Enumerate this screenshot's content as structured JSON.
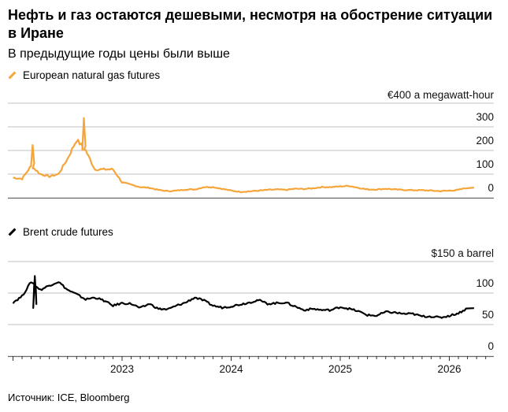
{
  "title": "Нефть и газ остаются дешевыми, несмотря на обострение ситуации в Иране",
  "subtitle": "В предыдущие годы цены были выше",
  "source": "Источник: ICE, Bloomberg",
  "colors": {
    "gas": "#f5a53a",
    "brent": "#000000",
    "grid": "#e0e0e0",
    "axis": "#666666"
  },
  "chart_data": [
    {
      "type": "line",
      "title": "European natural gas futures",
      "unit_label": "€400 a megawatt-hour",
      "ylim": [
        0,
        400
      ],
      "yticks": [
        0,
        100,
        200,
        300
      ],
      "ytick_labels": [
        "0",
        "100",
        "200",
        "300"
      ],
      "x_start": 2022.0,
      "x_step_months": 1,
      "values": [
        85,
        80,
        135,
        100,
        90,
        100,
        165,
        245,
        200,
        120,
        120,
        120,
        65,
        55,
        45,
        42,
        33,
        28,
        30,
        35,
        35,
        45,
        45,
        38,
        30,
        25,
        27,
        30,
        33,
        35,
        33,
        38,
        37,
        40,
        45,
        45,
        48,
        50,
        42,
        35,
        35,
        38,
        35,
        33,
        32,
        32,
        30,
        28,
        30,
        33,
        43
      ],
      "peaks": [
        {
          "x": 2022.18,
          "y": 223
        },
        {
          "x": 2022.65,
          "y": 337
        }
      ],
      "color": "#f5a53a"
    },
    {
      "type": "line",
      "title": "Brent crude futures",
      "unit_label": "$150 a barrel",
      "ylim": [
        0,
        150
      ],
      "yticks": [
        0,
        50,
        100
      ],
      "ytick_labels": [
        "0",
        "50",
        "100"
      ],
      "x_start": 2022.0,
      "x_step_months": 1,
      "values": [
        85,
        95,
        118,
        105,
        112,
        118,
        105,
        98,
        90,
        93,
        88,
        80,
        84,
        83,
        76,
        83,
        75,
        74,
        80,
        85,
        93,
        88,
        80,
        77,
        79,
        82,
        85,
        89,
        83,
        84,
        85,
        79,
        73,
        75,
        73,
        73,
        78,
        75,
        71,
        65,
        64,
        70,
        69,
        67,
        67,
        63,
        63,
        61,
        64,
        68,
        76
      ],
      "peaks": [
        {
          "x": 2022.2,
          "y": 127
        }
      ],
      "color": "#000000"
    }
  ],
  "x_axis": {
    "labels": [
      "2023",
      "2024",
      "2025",
      "2026"
    ],
    "years": [
      2023,
      2024,
      2025,
      2026
    ],
    "range": [
      2021.9,
      2026.42
    ]
  }
}
